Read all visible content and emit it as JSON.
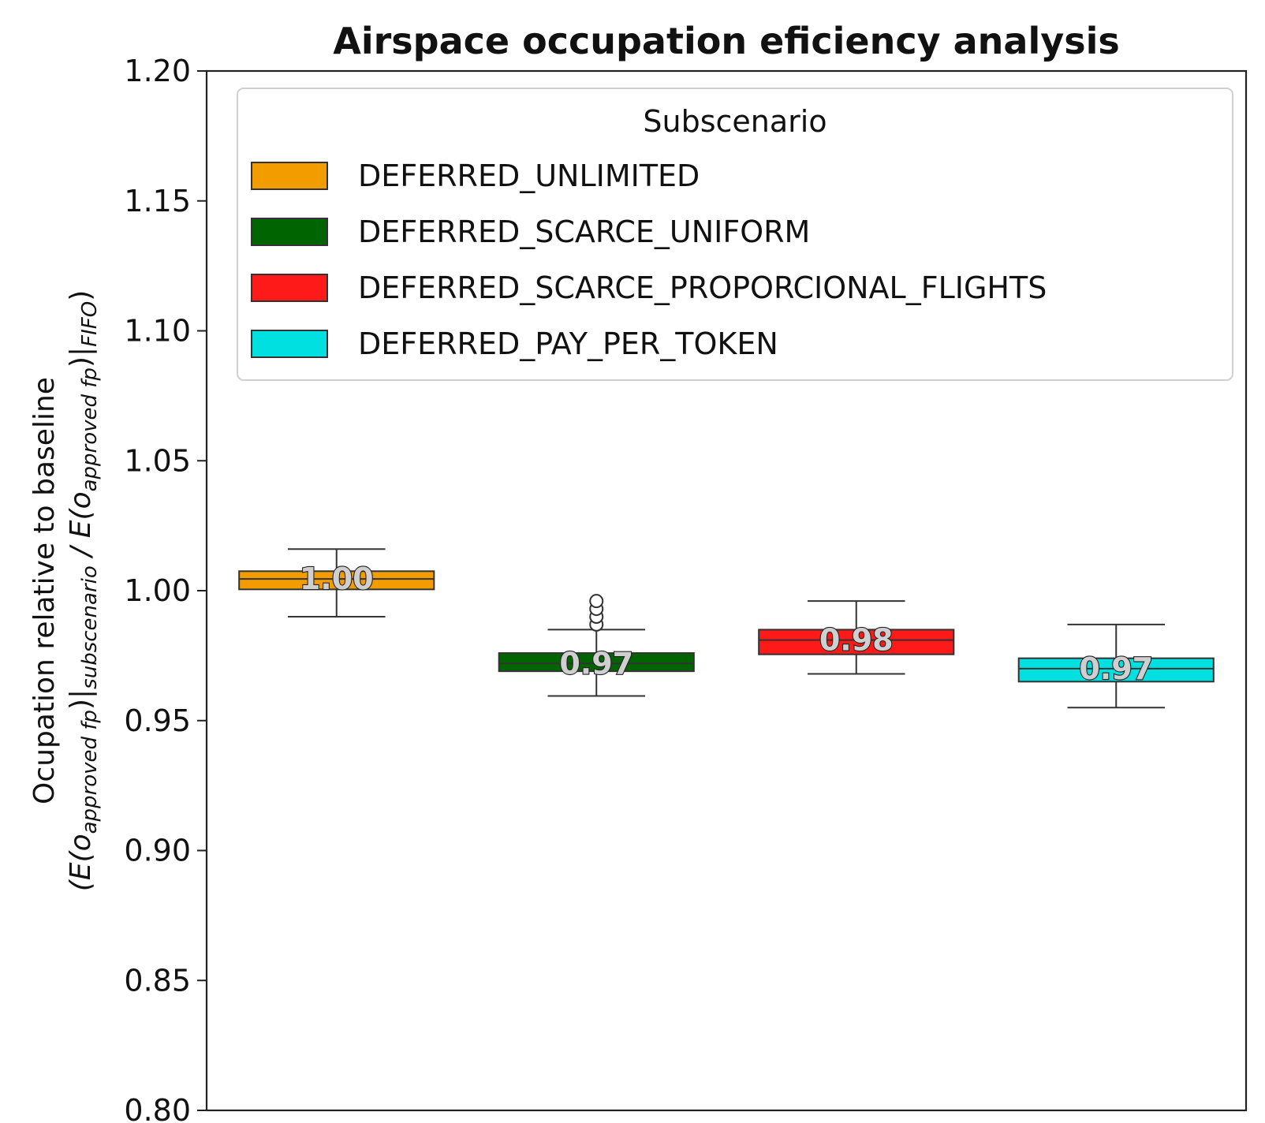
{
  "chart_data": {
    "type": "box",
    "title": "Airspace occupation eficiency analysis",
    "xlabel": "",
    "ylabel": {
      "line1": "Ocupation relative to baseline",
      "line2_parts": [
        {
          "text": "(E(o",
          "style": "italic-e"
        },
        {
          "text": "approved fp",
          "style": "sub"
        },
        {
          "text": ")|",
          "style": "normal"
        },
        {
          "text": "subscenario",
          "style": "sub"
        },
        {
          "text": " / E(o",
          "style": "italic-e"
        },
        {
          "text": "approved fp",
          "style": "sub"
        },
        {
          "text": ")|",
          "style": "normal"
        },
        {
          "text": "FIFO",
          "style": "sub"
        },
        {
          "text": ")",
          "style": "normal"
        }
      ]
    },
    "ylim": [
      0.8,
      1.2
    ],
    "yticks": [
      "0.80",
      "0.85",
      "0.90",
      "0.95",
      "1.00",
      "1.05",
      "1.10",
      "1.15",
      "1.20"
    ],
    "grid": false,
    "legend": {
      "title": "Subscenario",
      "position": "top",
      "entries": [
        {
          "label": "DEFERRED_UNLIMITED",
          "color": "#F39C00"
        },
        {
          "label": "DEFERRED_SCARCE_UNIFORM",
          "color": "#006400"
        },
        {
          "label": "DEFERRED_SCARCE_PROPORCIONAL_FLIGHTS",
          "color": "#FF1A1A"
        },
        {
          "label": "DEFERRED_PAY_PER_TOKEN",
          "color": "#00E0E0"
        }
      ]
    },
    "series": [
      {
        "name": "DEFERRED_UNLIMITED",
        "color": "#F39C00",
        "whisker_low": 0.99,
        "q1": 1.0005,
        "median": 1.0045,
        "q3": 1.0075,
        "whisker_high": 1.016,
        "outliers": [],
        "label": "1.00"
      },
      {
        "name": "DEFERRED_SCARCE_UNIFORM",
        "color": "#006400",
        "whisker_low": 0.9595,
        "q1": 0.969,
        "median": 0.972,
        "q3": 0.976,
        "whisker_high": 0.985,
        "outliers": [
          0.987,
          0.99,
          0.993,
          0.996
        ],
        "label": "0.97"
      },
      {
        "name": "DEFERRED_SCARCE_PROPORCIONAL_FLIGHTS",
        "color": "#FF1A1A",
        "whisker_low": 0.968,
        "q1": 0.9755,
        "median": 0.981,
        "q3": 0.985,
        "whisker_high": 0.996,
        "outliers": [],
        "label": "0.98"
      },
      {
        "name": "DEFERRED_PAY_PER_TOKEN",
        "color": "#00E0E0",
        "whisker_low": 0.955,
        "q1": 0.965,
        "median": 0.97,
        "q3": 0.974,
        "whisker_high": 0.987,
        "outliers": [],
        "label": "0.97"
      }
    ]
  }
}
